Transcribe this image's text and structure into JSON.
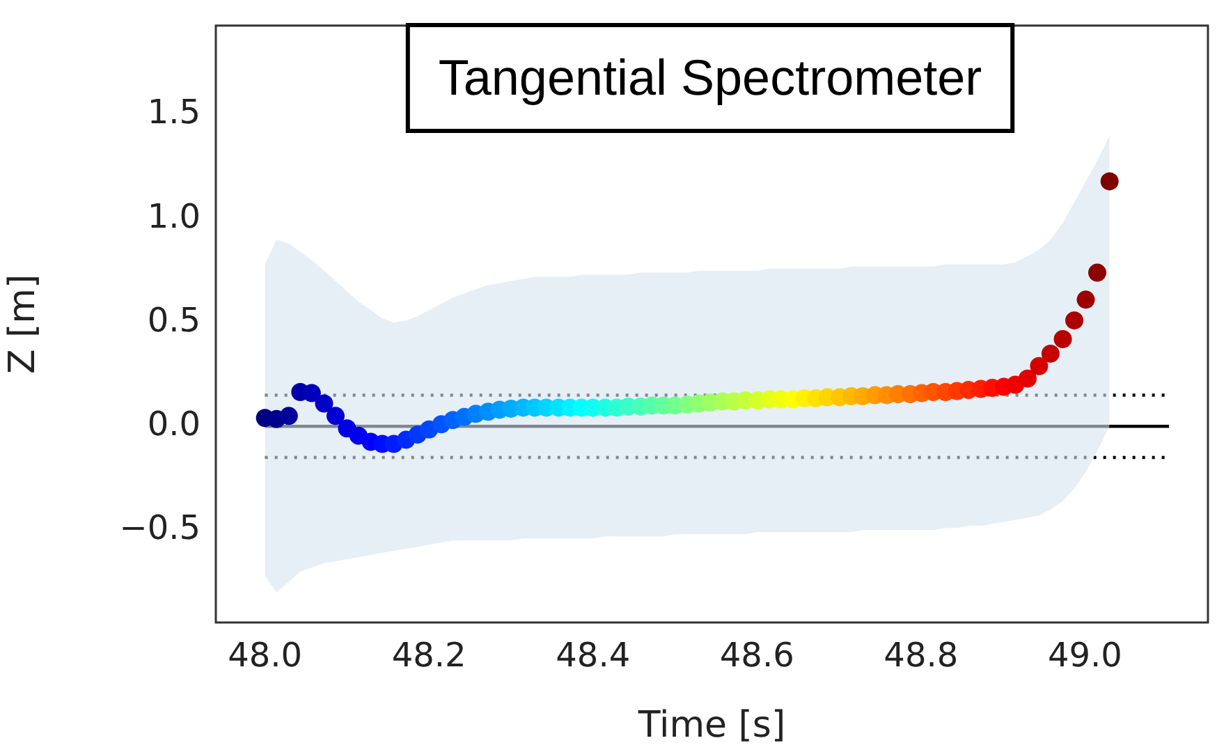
{
  "chart_data": {
    "type": "scatter",
    "title": "Tangential Spectrometer",
    "xlabel": "Time [s]",
    "ylabel": "Z [m]",
    "xlim": [
      47.94,
      49.15
    ],
    "xticks": [
      {
        "value": 48,
        "label": "48.0"
      },
      48.2,
      48.4,
      48.6,
      48.8,
      {
        "value": 49,
        "label": "49.0"
      }
    ],
    "ylim": [
      -0.945,
      1.93
    ],
    "yticks": [
      {
        "value": -0.5,
        "label": "−0.5"
      },
      {
        "value": 0,
        "label": "0.0"
      },
      0.5,
      {
        "value": 1,
        "label": "1.0"
      },
      1.5
    ],
    "grid": false,
    "legend": false,
    "marker": "circle",
    "ref_lines": [
      {
        "axis": "y",
        "value": 0,
        "color": "#000000",
        "line_style": "solid"
      },
      {
        "axis": "y",
        "value": 0.15,
        "color": "#000000",
        "line_style": "dotted"
      },
      {
        "axis": "y",
        "value": -0.15,
        "color": "#000000",
        "line_style": "dotted"
      }
    ],
    "series": [
      {
        "x": [
          48.0,
          48.014,
          48.029,
          48.043,
          48.057,
          48.072,
          48.086,
          48.1,
          48.114,
          48.129,
          48.143,
          48.157,
          48.172,
          48.186,
          48.2,
          48.215,
          48.229,
          48.243,
          48.257,
          48.272,
          48.286,
          48.3,
          48.315,
          48.329,
          48.343,
          48.358,
          48.372,
          48.386,
          48.4,
          48.415,
          48.429,
          48.443,
          48.458,
          48.472,
          48.486,
          48.5,
          48.515,
          48.529,
          48.543,
          48.558,
          48.572,
          48.586,
          48.601,
          48.615,
          48.629,
          48.644,
          48.658,
          48.672,
          48.686,
          48.701,
          48.715,
          48.729,
          48.744,
          48.758,
          48.772,
          48.787,
          48.801,
          48.815,
          48.83,
          48.844,
          48.858,
          48.873,
          48.887,
          48.901,
          48.915,
          48.93,
          48.944,
          48.958,
          48.973,
          48.987,
          49.001,
          49.015,
          49.03
        ],
        "values": [
          0.04,
          0.035,
          0.05,
          0.165,
          0.16,
          0.11,
          0.05,
          -0.01,
          -0.045,
          -0.075,
          -0.085,
          -0.085,
          -0.065,
          -0.04,
          -0.015,
          0.01,
          0.03,
          0.045,
          0.06,
          0.07,
          0.08,
          0.085,
          0.09,
          0.09,
          0.09,
          0.09,
          0.09,
          0.09,
          0.09,
          0.09,
          0.09,
          0.095,
          0.095,
          0.1,
          0.1,
          0.1,
          0.105,
          0.11,
          0.115,
          0.12,
          0.12,
          0.125,
          0.125,
          0.13,
          0.13,
          0.13,
          0.135,
          0.135,
          0.14,
          0.14,
          0.145,
          0.145,
          0.15,
          0.15,
          0.155,
          0.155,
          0.16,
          0.165,
          0.165,
          0.17,
          0.175,
          0.18,
          0.185,
          0.19,
          0.2,
          0.23,
          0.29,
          0.35,
          0.42,
          0.51,
          0.61,
          0.74,
          1.18
        ],
        "upper": [
          0.78,
          0.9,
          0.88,
          0.84,
          0.8,
          0.75,
          0.7,
          0.65,
          0.6,
          0.56,
          0.52,
          0.5,
          0.51,
          0.53,
          0.56,
          0.59,
          0.62,
          0.64,
          0.66,
          0.68,
          0.69,
          0.7,
          0.71,
          0.72,
          0.72,
          0.72,
          0.72,
          0.73,
          0.73,
          0.73,
          0.73,
          0.73,
          0.74,
          0.74,
          0.74,
          0.74,
          0.74,
          0.75,
          0.75,
          0.75,
          0.75,
          0.75,
          0.75,
          0.76,
          0.76,
          0.76,
          0.76,
          0.76,
          0.76,
          0.76,
          0.77,
          0.77,
          0.77,
          0.77,
          0.77,
          0.77,
          0.77,
          0.77,
          0.78,
          0.78,
          0.78,
          0.78,
          0.78,
          0.78,
          0.79,
          0.82,
          0.85,
          0.9,
          0.98,
          1.08,
          1.18,
          1.28,
          1.4
        ],
        "lower": [
          -0.72,
          -0.8,
          -0.75,
          -0.7,
          -0.68,
          -0.66,
          -0.65,
          -0.64,
          -0.63,
          -0.62,
          -0.61,
          -0.6,
          -0.59,
          -0.58,
          -0.57,
          -0.56,
          -0.55,
          -0.55,
          -0.55,
          -0.55,
          -0.55,
          -0.55,
          -0.54,
          -0.54,
          -0.54,
          -0.54,
          -0.54,
          -0.54,
          -0.54,
          -0.53,
          -0.53,
          -0.53,
          -0.53,
          -0.53,
          -0.53,
          -0.52,
          -0.52,
          -0.52,
          -0.52,
          -0.52,
          -0.52,
          -0.52,
          -0.51,
          -0.51,
          -0.51,
          -0.51,
          -0.51,
          -0.51,
          -0.51,
          -0.51,
          -0.51,
          -0.5,
          -0.5,
          -0.5,
          -0.5,
          -0.5,
          -0.5,
          -0.5,
          -0.49,
          -0.49,
          -0.48,
          -0.48,
          -0.47,
          -0.46,
          -0.45,
          -0.44,
          -0.43,
          -0.4,
          -0.36,
          -0.3,
          -0.22,
          -0.12,
          0.0
        ],
        "colors": [
          "#000080",
          "#00008e",
          "#00009c",
          "#0000aa",
          "#0000b8",
          "#0000c6",
          "#0000d5",
          "#0000e3",
          "#0000f1",
          "#0000ff",
          "#000eff",
          "#001cff",
          "#002bff",
          "#0039ff",
          "#0047ff",
          "#0055ff",
          "#0063ff",
          "#0071ff",
          "#0080ff",
          "#008eff",
          "#009cff",
          "#00aaff",
          "#00b8ff",
          "#00c6ff",
          "#00d5ff",
          "#00e3ff",
          "#00f1ff",
          "#00ffff",
          "#0efff1",
          "#1cffe3",
          "#2bffd5",
          "#39ffc6",
          "#47ffb8",
          "#55ffaa",
          "#63ff9c",
          "#71ff8e",
          "#80ff80",
          "#8eff71",
          "#9cff63",
          "#aaff55",
          "#b8ff47",
          "#c6ff39",
          "#d5ff2b",
          "#e3ff1c",
          "#f1ff0e",
          "#ffff00",
          "#fff100",
          "#ffe300",
          "#ffd500",
          "#ffc600",
          "#ffb800",
          "#ffaa00",
          "#ff9c00",
          "#ff8e00",
          "#ff8000",
          "#ff7100",
          "#ff6300",
          "#ff5500",
          "#ff4700",
          "#ff3900",
          "#ff2b00",
          "#ff1c00",
          "#ff0e00",
          "#ff0000",
          "#f10000",
          "#e30000",
          "#d50000",
          "#c60000",
          "#b80000",
          "#aa0000",
          "#9c0000",
          "#8e0000",
          "#800000"
        ]
      }
    ]
  }
}
